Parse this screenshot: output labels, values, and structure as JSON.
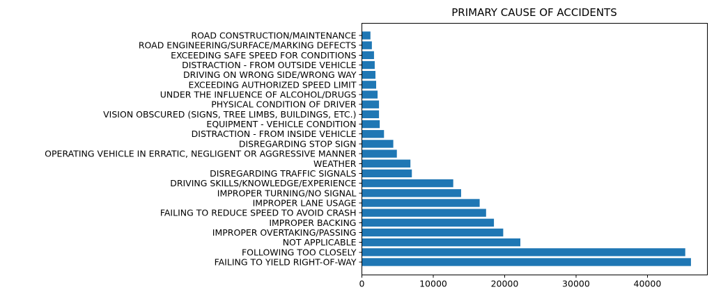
{
  "chart_data": {
    "type": "bar",
    "orientation": "horizontal",
    "title": "PRIMARY CAUSE OF ACCIDENTS",
    "xlabel": "",
    "ylabel": "",
    "categories": [
      "FAILING TO YIELD RIGHT-OF-WAY",
      "FOLLOWING TOO CLOSELY",
      "NOT APPLICABLE",
      "IMPROPER OVERTAKING/PASSING",
      "IMPROPER BACKING",
      "FAILING TO REDUCE SPEED TO AVOID CRASH",
      "IMPROPER LANE USAGE",
      "IMPROPER TURNING/NO SIGNAL",
      "DRIVING SKILLS/KNOWLEDGE/EXPERIENCE",
      "DISREGARDING TRAFFIC SIGNALS",
      "WEATHER",
      "OPERATING VEHICLE IN ERRATIC, NEGLIGENT OR AGGRESSIVE MANNER",
      "DISREGARDING STOP SIGN",
      "DISTRACTION - FROM INSIDE VEHICLE",
      "EQUIPMENT - VEHICLE CONDITION",
      "VISION OBSCURED (SIGNS, TREE LIMBS, BUILDINGS, ETC.)",
      "PHYSICAL CONDITION OF DRIVER",
      "UNDER THE INFLUENCE OF ALCOHOL/DRUGS",
      "EXCEEDING AUTHORIZED SPEED LIMIT",
      "DRIVING ON WRONG SIDE/WRONG WAY",
      "DISTRACTION - FROM OUTSIDE VEHICLE",
      "EXCEEDING SAFE SPEED FOR CONDITIONS",
      "ROAD ENGINEERING/SURFACE/MARKING DEFECTS",
      "ROAD CONSTRUCTION/MAINTENANCE"
    ],
    "values": [
      46100,
      45300,
      22200,
      19800,
      18500,
      17400,
      16500,
      13900,
      12800,
      7000,
      6800,
      4900,
      4400,
      3100,
      2500,
      2400,
      2400,
      2200,
      2000,
      1900,
      1800,
      1700,
      1400,
      1200
    ],
    "xlim": [
      0,
      48400
    ],
    "xticks": [
      0,
      10000,
      20000,
      30000,
      40000
    ],
    "grid": false,
    "legend": "none",
    "bar_color": "#1f77b4"
  }
}
